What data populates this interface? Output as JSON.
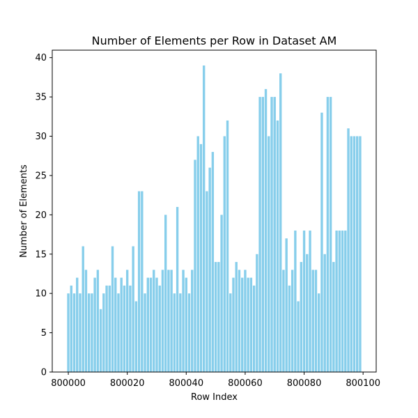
{
  "chart_data": {
    "type": "bar",
    "title": "Number of Elements per Row in Dataset AM",
    "xlabel": "Row Index",
    "ylabel": "Number of Elements",
    "x_start": 800000,
    "xlim": [
      799994.55,
      800104.45
    ],
    "ylim": [
      0,
      40.95
    ],
    "xticks": [
      800000,
      800020,
      800040,
      800060,
      800080,
      800100
    ],
    "yticks": [
      0,
      5,
      10,
      15,
      20,
      25,
      30,
      35,
      40
    ],
    "grid": false,
    "bar_color": "#87ceeb",
    "x": [
      800000,
      800001,
      800002,
      800003,
      800004,
      800005,
      800006,
      800007,
      800008,
      800009,
      800010,
      800011,
      800012,
      800013,
      800014,
      800015,
      800016,
      800017,
      800018,
      800019,
      800020,
      800021,
      800022,
      800023,
      800024,
      800025,
      800026,
      800027,
      800028,
      800029,
      800030,
      800031,
      800032,
      800033,
      800034,
      800035,
      800036,
      800037,
      800038,
      800039,
      800040,
      800041,
      800042,
      800043,
      800044,
      800045,
      800046,
      800047,
      800048,
      800049,
      800050,
      800051,
      800052,
      800053,
      800054,
      800055,
      800056,
      800057,
      800058,
      800059,
      800060,
      800061,
      800062,
      800063,
      800064,
      800065,
      800066,
      800067,
      800068,
      800069,
      800070,
      800071,
      800072,
      800073,
      800074,
      800075,
      800076,
      800077,
      800078,
      800079,
      800080,
      800081,
      800082,
      800083,
      800084,
      800085,
      800086,
      800087,
      800088,
      800089,
      800090,
      800091,
      800092,
      800093,
      800094,
      800095,
      800096,
      800097,
      800098,
      800099
    ],
    "values": [
      10,
      11,
      10,
      12,
      10,
      16,
      13,
      10,
      10,
      12,
      13,
      8,
      10,
      11,
      11,
      16,
      12,
      10,
      12,
      11,
      13,
      11,
      16,
      9,
      23,
      23,
      10,
      12,
      12,
      13,
      12,
      11,
      13,
      20,
      13,
      13,
      10,
      21,
      10,
      13,
      12,
      10,
      13,
      27,
      30,
      29,
      39,
      23,
      26,
      28,
      14,
      14,
      20,
      30,
      32,
      10,
      12,
      14,
      13,
      12,
      13,
      12,
      12,
      11,
      15,
      35,
      35,
      36,
      30,
      35,
      35,
      32,
      38,
      13,
      17,
      11,
      13,
      18,
      9,
      14,
      18,
      15,
      18,
      13,
      13,
      10,
      33,
      15,
      35,
      35,
      14,
      18,
      18,
      18,
      18,
      31,
      30,
      30,
      30,
      30
    ]
  }
}
